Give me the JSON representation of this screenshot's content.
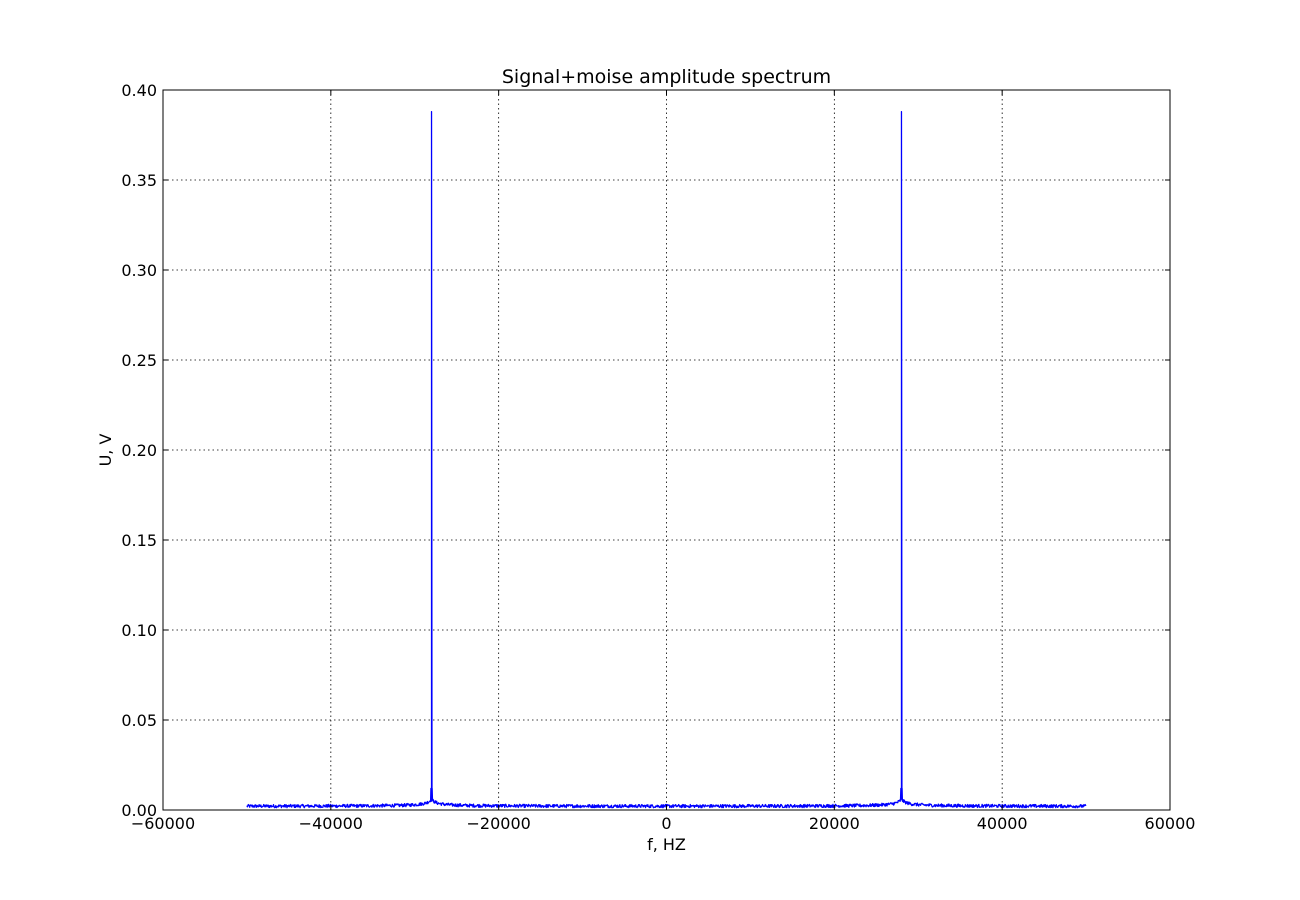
{
  "chart_data": {
    "type": "line",
    "title": "Signal+moise amplitude spectrum",
    "xlabel": "f, HZ",
    "ylabel": "U, V",
    "xlim": [
      -60000,
      60000
    ],
    "ylim": [
      0,
      0.4
    ],
    "xticks": [
      -60000,
      -40000,
      -20000,
      0,
      20000,
      40000,
      60000
    ],
    "xtick_labels": [
      "−60000",
      "−40000",
      "−20000",
      "0",
      "20000",
      "40000",
      "60000"
    ],
    "yticks": [
      0.0,
      0.05,
      0.1,
      0.15,
      0.2,
      0.25,
      0.3,
      0.35,
      0.4
    ],
    "ytick_labels": [
      "0.00",
      "0.05",
      "0.10",
      "0.15",
      "0.20",
      "0.25",
      "0.30",
      "0.35",
      "0.40"
    ],
    "grid": true,
    "series": [
      {
        "color": "#0000ff",
        "x_range": [
          -50000,
          50000
        ],
        "noise_floor": 0.002,
        "peaks": [
          {
            "x": -28000,
            "y": 0.388
          },
          {
            "x": 28000,
            "y": 0.388
          }
        ]
      }
    ]
  }
}
